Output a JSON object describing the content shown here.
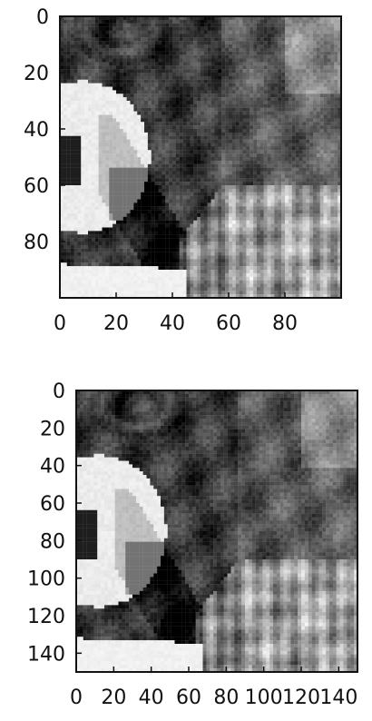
{
  "chart_data": [
    {
      "type": "heatmap",
      "title": "",
      "xlabel": "",
      "ylabel": "",
      "image": {
        "width": 100,
        "height": 100,
        "colormap": "gray"
      },
      "xlim": [
        0,
        100
      ],
      "ylim": [
        100,
        0
      ],
      "x_ticks": [
        0,
        20,
        40,
        60,
        80
      ],
      "y_ticks": [
        0,
        20,
        40,
        60,
        80
      ],
      "grid": false
    },
    {
      "type": "heatmap",
      "title": "",
      "xlabel": "",
      "ylabel": "",
      "image": {
        "width": 150,
        "height": 150,
        "colormap": "gray"
      },
      "xlim": [
        0,
        150
      ],
      "ylim": [
        150,
        0
      ],
      "x_ticks": [
        0,
        20,
        40,
        60,
        80,
        100,
        120,
        140
      ],
      "y_ticks": [
        0,
        20,
        40,
        60,
        80,
        100,
        120,
        140
      ],
      "grid": false
    }
  ]
}
